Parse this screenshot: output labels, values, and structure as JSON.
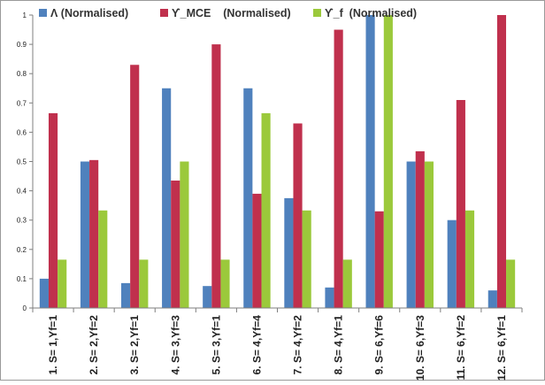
{
  "chart_data": {
    "type": "bar",
    "title": "",
    "xlabel": "",
    "ylabel": "",
    "ylim": [
      0,
      1
    ],
    "yticks": [
      "0",
      "0.1",
      "0.2",
      "0.3",
      "0.4",
      "0.5",
      "0.6",
      "0.7",
      "0.8",
      "0.9",
      "1"
    ],
    "grid": false,
    "legend_position": "top",
    "categories": [
      "1. S= 1,Yf=1",
      "2. S= 2,Yf=2",
      "3. S= 2,Yf=1",
      "4. S= 3,Yf=3",
      "5. S= 3,Yf=1",
      "6. S= 4,Yf=4",
      "7. S= 4,Yf=2",
      "8. S= 4,Yf=1",
      "9. S= 6,Yf=6",
      "10. S= 6,Yf=3",
      "11. S= 6,Yf=2",
      "12. S= 6,Yf=1"
    ],
    "series": [
      {
        "name": "Λ (Normalised)",
        "color": "#4f81bd",
        "values": [
          0.1,
          0.5,
          0.085,
          0.75,
          0.075,
          0.75,
          0.375,
          0.07,
          1.0,
          0.5,
          0.3,
          0.06
        ]
      },
      {
        "name": "ϒ_MCE    (Normalised)",
        "color": "#c0304d",
        "values": [
          0.665,
          0.505,
          0.83,
          0.435,
          0.9,
          0.39,
          0.63,
          0.95,
          0.33,
          0.535,
          0.71,
          1.0
        ]
      },
      {
        "name": "ϒ_f  (Normalised)",
        "color": "#9bc93b",
        "values": [
          0.165,
          0.333,
          0.165,
          0.5,
          0.165,
          0.665,
          0.333,
          0.165,
          1.0,
          0.5,
          0.333,
          0.165
        ]
      }
    ]
  }
}
